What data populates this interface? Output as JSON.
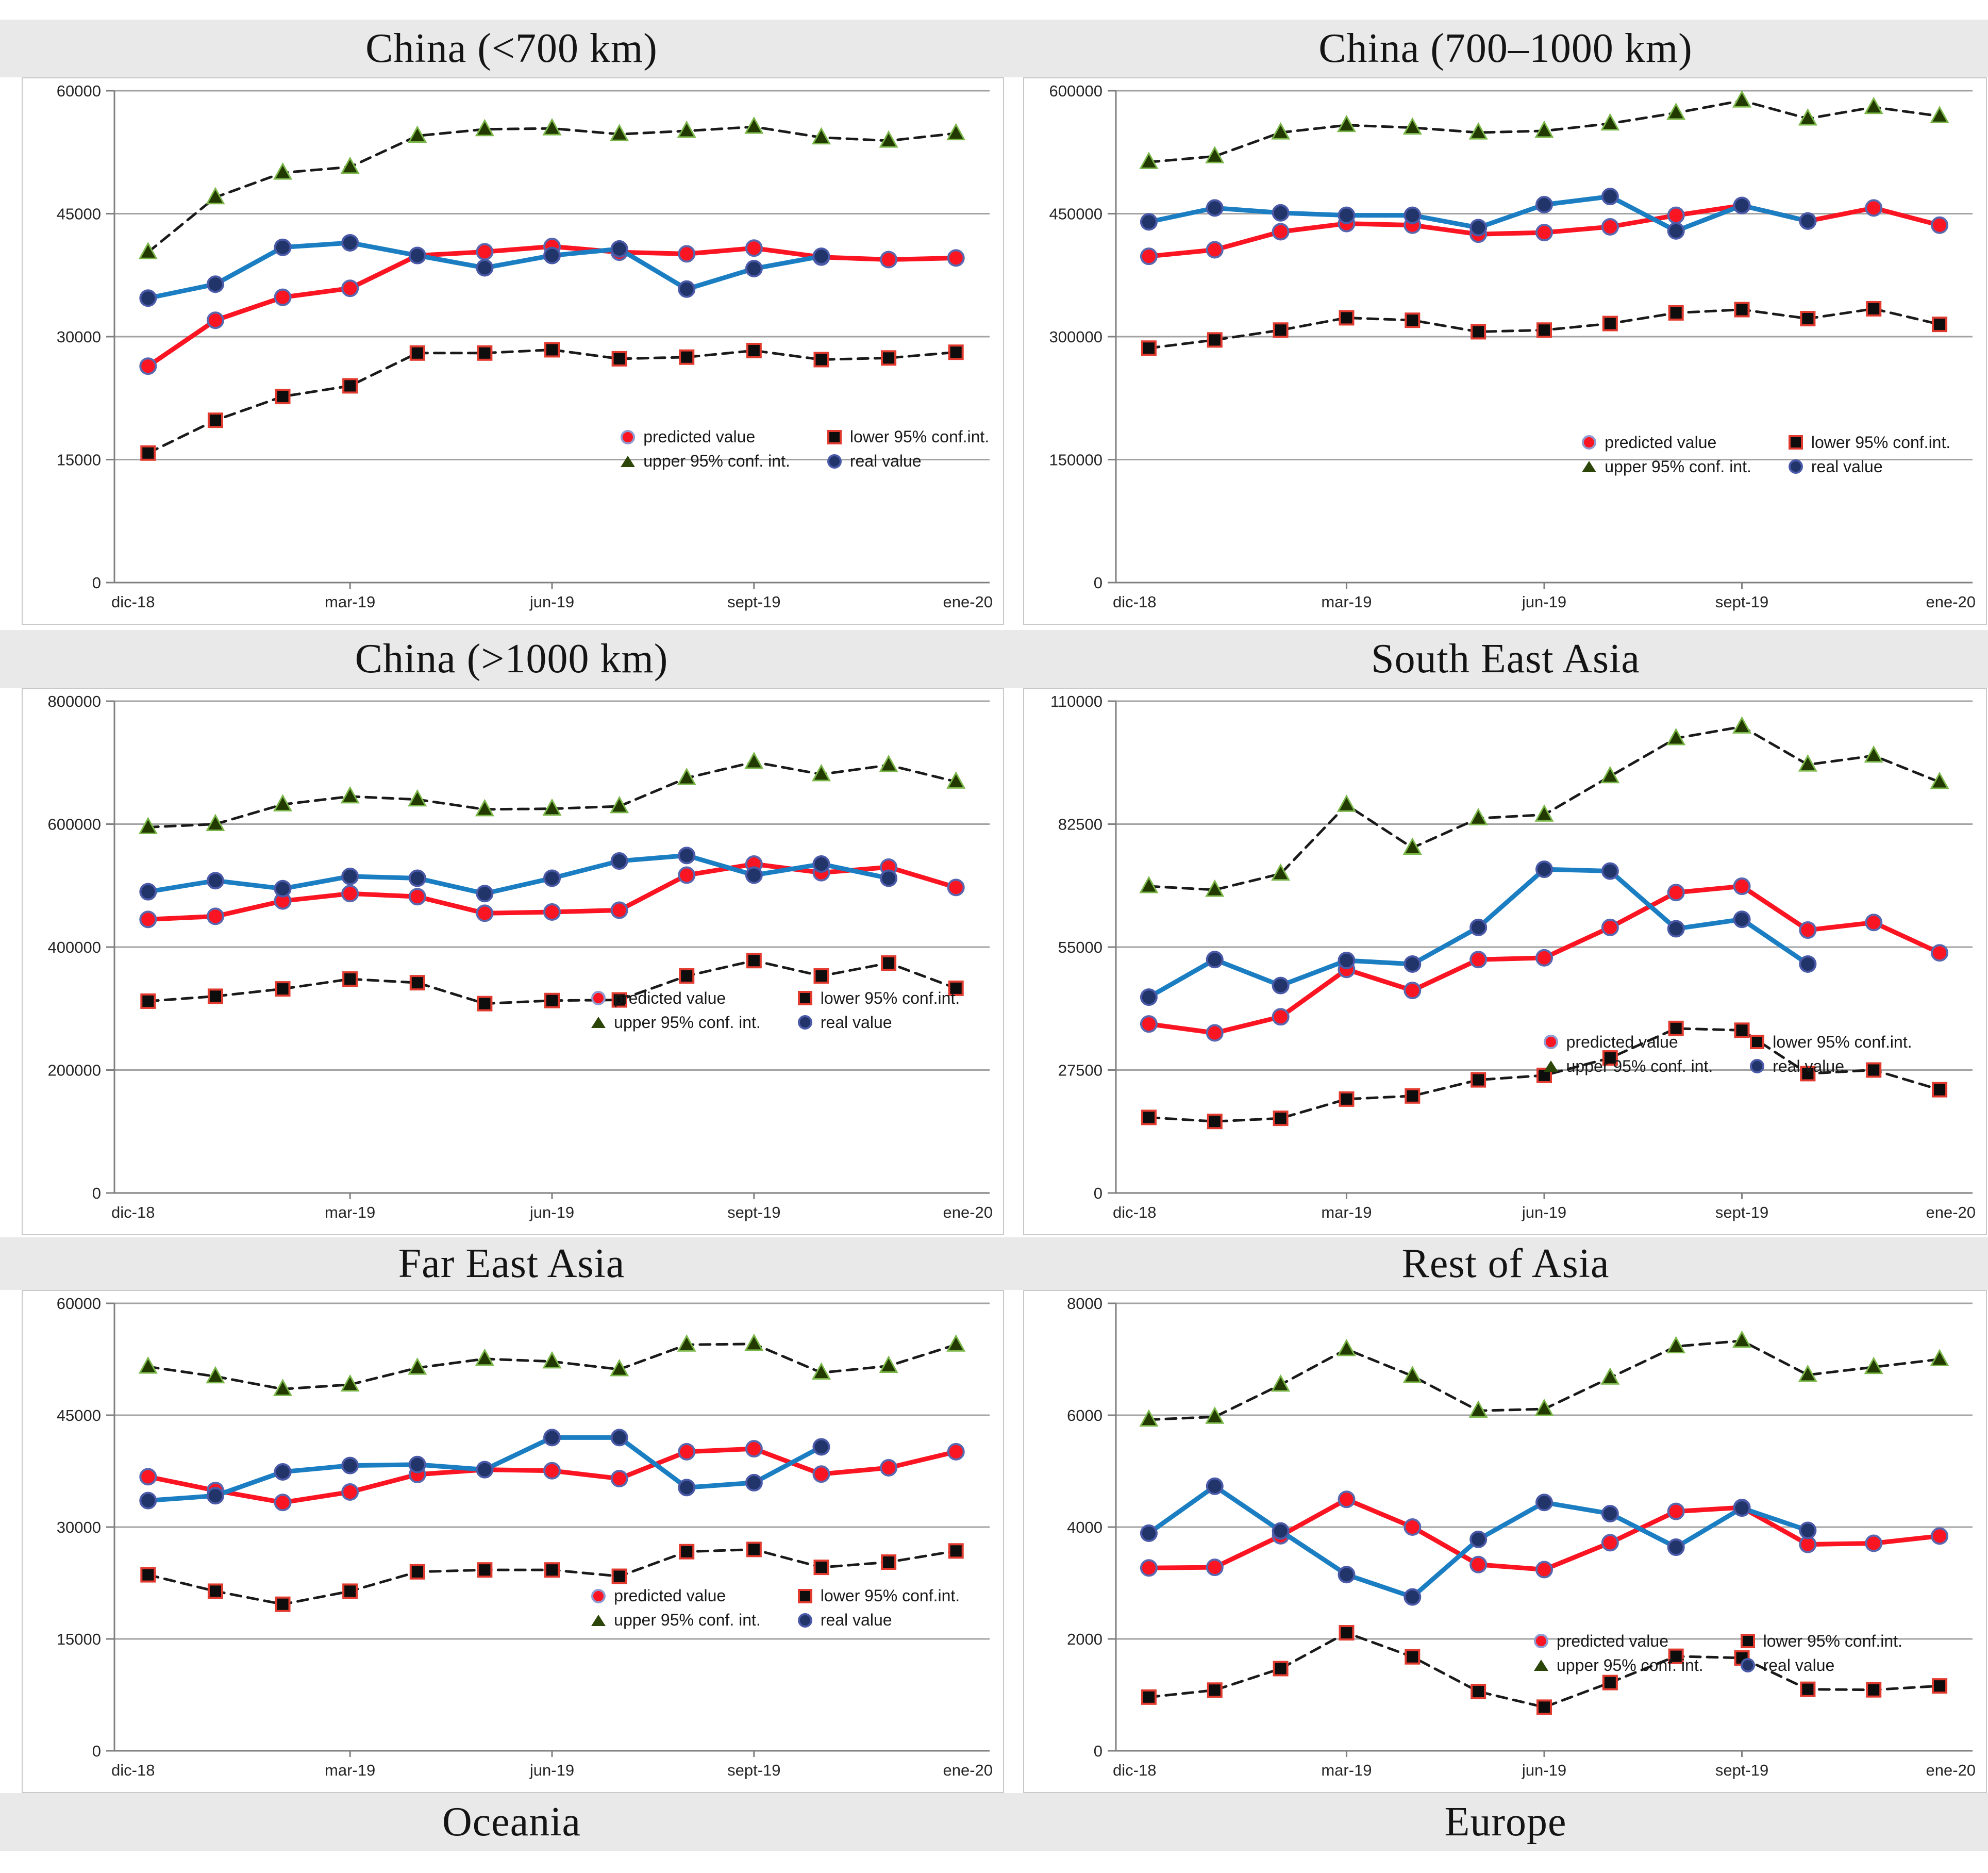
{
  "legend": {
    "predicted": "predicted value",
    "lower": "lower 95% conf.int.",
    "upper": "upper 95% conf. int.",
    "real": "real value"
  },
  "colors": {
    "predicted_line": "#fb1421",
    "predicted_marker_fill": "#fb1421",
    "predicted_marker_rim": "#5868b0",
    "real_line": "#1b7ec2",
    "real_marker_fill": "#21356b",
    "real_marker_rim": "#4a5aa8",
    "conf_line": "#1a1a1a",
    "upper_marker_fill": "#223a00",
    "upper_marker_rim": "#7ab648",
    "lower_marker_fill": "#0d0d0d",
    "lower_marker_rim": "#e23a2e",
    "gridline": "#a3a3a3",
    "axis": "#7f7f7f",
    "strip_background": "#e9e9e9"
  },
  "bottom_titles": {
    "left": "Oceania",
    "right": "Europe"
  },
  "chart_data": [
    {
      "type": "line",
      "title": "China (<700 km)",
      "n_points": 13,
      "x_labels": [
        "dic-18",
        "mar-19",
        "jun-19",
        "sept-19",
        "ene-20"
      ],
      "x_label_indices": [
        0,
        3,
        6,
        9,
        12
      ],
      "ylim": [
        0,
        60000
      ],
      "yticks": [
        0,
        15000,
        30000,
        45000,
        60000
      ],
      "series": {
        "predicted": [
          26400,
          32000,
          34800,
          35900,
          39900,
          40350,
          41000,
          40300,
          40100,
          40800,
          39700,
          39400,
          39600
        ],
        "real": [
          34700,
          36400,
          40900,
          41450,
          39900,
          38400,
          39900,
          40700,
          35800,
          38300,
          39800
        ],
        "upper": [
          40300,
          47000,
          50000,
          50700,
          54500,
          55300,
          55400,
          54700,
          55100,
          55600,
          54300,
          53900,
          54800
        ],
        "lower": [
          15800,
          19800,
          22700,
          24000,
          28000,
          28000,
          28400,
          27300,
          27500,
          28300,
          27200,
          27400,
          28100
        ]
      }
    },
    {
      "type": "line",
      "title": "China (700–1000 km)",
      "n_points": 13,
      "x_labels": [
        "dic-18",
        "mar-19",
        "jun-19",
        "sept-19",
        "ene-20"
      ],
      "x_label_indices": [
        0,
        3,
        6,
        9,
        12
      ],
      "ylim": [
        0,
        600000
      ],
      "yticks": [
        0,
        150000,
        300000,
        450000,
        600000
      ],
      "series": {
        "predicted": [
          398000,
          406000,
          428000,
          438000,
          436000,
          425000,
          427000,
          434000,
          448000,
          460000,
          441000,
          457000,
          436000
        ],
        "real": [
          440000,
          457000,
          451000,
          448000,
          448000,
          433000,
          461000,
          471000,
          429000,
          460000,
          441000
        ],
        "upper": [
          513000,
          520000,
          549000,
          558000,
          555000,
          549000,
          551000,
          560000,
          573000,
          588000,
          566000,
          580000,
          569000
        ],
        "lower": [
          286000,
          296000,
          308000,
          323000,
          320000,
          306000,
          308000,
          316000,
          329000,
          333000,
          322000,
          334000,
          315000
        ]
      }
    },
    {
      "type": "line",
      "title": "China (>1000 km)",
      "n_points": 13,
      "x_labels": [
        "dic-18",
        "mar-19",
        "jun-19",
        "sept-19",
        "ene-20"
      ],
      "x_label_indices": [
        0,
        3,
        6,
        9,
        12
      ],
      "ylim": [
        0,
        800000
      ],
      "yticks": [
        0,
        200000,
        400000,
        600000,
        800000
      ],
      "series": {
        "predicted": [
          445000,
          450000,
          475000,
          487000,
          482000,
          455000,
          457000,
          460000,
          517000,
          535000,
          521000,
          530000,
          497000
        ],
        "real": [
          490000,
          508000,
          495000,
          515000,
          512000,
          487000,
          512000,
          540000,
          549000,
          517000,
          535000,
          512000
        ],
        "upper": [
          595000,
          600000,
          632000,
          645000,
          640000,
          624000,
          625000,
          629000,
          675000,
          701000,
          681000,
          696000,
          669000
        ],
        "lower": [
          312000,
          320000,
          332000,
          348000,
          342000,
          308000,
          313000,
          314000,
          353000,
          378000,
          353000,
          374000,
          333000
        ]
      }
    },
    {
      "type": "line",
      "title": "South East Asia",
      "n_points": 13,
      "x_labels": [
        "dic-18",
        "mar-19",
        "jun-19",
        "sept-19",
        "ene-20"
      ],
      "x_label_indices": [
        0,
        3,
        6,
        9,
        12
      ],
      "ylim": [
        0,
        110000
      ],
      "yticks": [
        0,
        27500,
        55000,
        82500,
        110000
      ],
      "series": {
        "predicted": [
          37800,
          35800,
          39400,
          50000,
          45300,
          52200,
          52600,
          59400,
          67200,
          68600,
          58800,
          60500,
          53700
        ],
        "real": [
          43800,
          52200,
          46400,
          52000,
          51200,
          59400,
          72400,
          72000,
          59100,
          61200,
          51200
        ],
        "upper": [
          68600,
          67800,
          71400,
          86800,
          77200,
          83800,
          84600,
          93200,
          101700,
          104300,
          95800,
          97800,
          91900
        ],
        "lower": [
          16900,
          16000,
          16700,
          21000,
          21700,
          25300,
          26300,
          30200,
          36800,
          36400,
          26700,
          27500,
          23100
        ]
      }
    },
    {
      "type": "line",
      "title": "Far East Asia",
      "n_points": 13,
      "x_labels": [
        "dic-18",
        "mar-19",
        "jun-19",
        "sept-19",
        "ene-20"
      ],
      "x_label_indices": [
        0,
        3,
        6,
        9,
        12
      ],
      "ylim": [
        0,
        60000
      ],
      "yticks": [
        0,
        15000,
        30000,
        45000,
        60000
      ],
      "series": {
        "predicted": [
          36750,
          34900,
          33300,
          34700,
          37050,
          37700,
          37550,
          36500,
          40100,
          40500,
          37100,
          37950,
          40100
        ],
        "real": [
          33550,
          34200,
          37400,
          38250,
          38380,
          37700,
          42000,
          42000,
          35300,
          35950,
          40750
        ],
        "upper": [
          51500,
          50200,
          48500,
          49100,
          51350,
          52550,
          52200,
          51150,
          54450,
          54550,
          50700,
          51600,
          54450
        ],
        "lower": [
          23600,
          21400,
          19650,
          21400,
          24000,
          24250,
          24250,
          23400,
          26700,
          27000,
          24600,
          25300,
          26800
        ]
      }
    },
    {
      "type": "line",
      "title": "Rest of Asia",
      "n_points": 13,
      "x_labels": [
        "dic-18",
        "mar-19",
        "jun-19",
        "sept-19",
        "ene-20"
      ],
      "x_label_indices": [
        0,
        3,
        6,
        9,
        12
      ],
      "ylim": [
        0,
        8000
      ],
      "yticks": [
        0,
        2000,
        4000,
        6000,
        8000
      ],
      "series": {
        "predicted": [
          3270,
          3280,
          3845,
          4495,
          4000,
          3330,
          3240,
          3720,
          4280,
          4350,
          3690,
          3710,
          3840
        ],
        "real": [
          3890,
          4730,
          3930,
          3150,
          2750,
          3780,
          4440,
          4240,
          3640,
          4340,
          3940
        ],
        "upper": [
          5920,
          5970,
          6545,
          7180,
          6700,
          6080,
          6110,
          6670,
          7230,
          7330,
          6720,
          6860,
          7000
        ],
        "lower": [
          960,
          1085,
          1470,
          2110,
          1680,
          1060,
          780,
          1220,
          1690,
          1660,
          1100,
          1090,
          1160
        ]
      }
    }
  ]
}
